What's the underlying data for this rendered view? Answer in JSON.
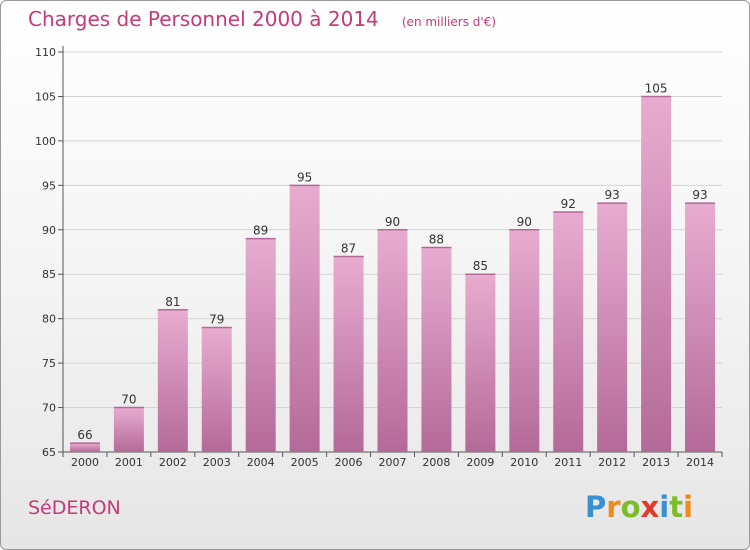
{
  "header": {
    "title": "Charges de Personnel 2000 à 2014",
    "subtitle": "(en milliers d'€)"
  },
  "footer": {
    "city": "SéDERON",
    "logo": {
      "letters": [
        "P",
        "r",
        "o",
        "x",
        "i",
        "t",
        "i"
      ],
      "colors": [
        "#3a8fd3",
        "#f08a1c",
        "#7cbd2a",
        "#e23b2a",
        "#3a8fd3",
        "#7cbd2a",
        "#f08a1c"
      ]
    }
  },
  "colors": {
    "bar_top": "#e8acd0",
    "bar_bottom": "#b46a98",
    "bar_side": "#d68fb9",
    "accent": "#c43a7a"
  },
  "chart_data": {
    "type": "bar",
    "categories": [
      "2000",
      "2001",
      "2002",
      "2003",
      "2004",
      "2005",
      "2006",
      "2007",
      "2008",
      "2009",
      "2010",
      "2011",
      "2012",
      "2013",
      "2014"
    ],
    "values": [
      66,
      70,
      81,
      79,
      89,
      95,
      87,
      90,
      88,
      85,
      90,
      92,
      93,
      105,
      93
    ],
    "title": "Charges de Personnel 2000 à 2014",
    "subtitle": "(en milliers d'€)",
    "ylim": [
      65,
      110
    ],
    "yticks": [
      65,
      70,
      75,
      80,
      85,
      90,
      95,
      100,
      105,
      110
    ],
    "grid": true,
    "legend": "none"
  }
}
